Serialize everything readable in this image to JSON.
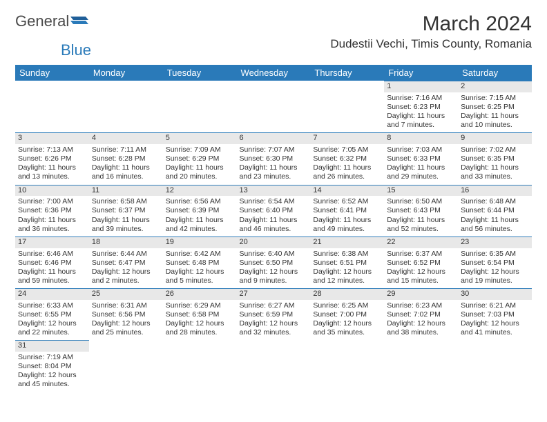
{
  "logo": {
    "text1": "General",
    "text2": "Blue"
  },
  "title": "March 2024",
  "location": "Dudestii Vechi, Timis County, Romania",
  "colors": {
    "header_bg": "#2a7ab9",
    "header_text": "#ffffff",
    "daynum_bg": "#e8e8e8",
    "rule": "#2a7ab9",
    "body_text": "#333333"
  },
  "weekdays": [
    "Sunday",
    "Monday",
    "Tuesday",
    "Wednesday",
    "Thursday",
    "Friday",
    "Saturday"
  ],
  "weeks": [
    [
      {
        "num": "",
        "sunrise": "",
        "sunset": "",
        "day": ""
      },
      {
        "num": "",
        "sunrise": "",
        "sunset": "",
        "day": ""
      },
      {
        "num": "",
        "sunrise": "",
        "sunset": "",
        "day": ""
      },
      {
        "num": "",
        "sunrise": "",
        "sunset": "",
        "day": ""
      },
      {
        "num": "",
        "sunrise": "",
        "sunset": "",
        "day": ""
      },
      {
        "num": "1",
        "sunrise": "Sunrise: 7:16 AM",
        "sunset": "Sunset: 6:23 PM",
        "day": "Daylight: 11 hours and 7 minutes."
      },
      {
        "num": "2",
        "sunrise": "Sunrise: 7:15 AM",
        "sunset": "Sunset: 6:25 PM",
        "day": "Daylight: 11 hours and 10 minutes."
      }
    ],
    [
      {
        "num": "3",
        "sunrise": "Sunrise: 7:13 AM",
        "sunset": "Sunset: 6:26 PM",
        "day": "Daylight: 11 hours and 13 minutes."
      },
      {
        "num": "4",
        "sunrise": "Sunrise: 7:11 AM",
        "sunset": "Sunset: 6:28 PM",
        "day": "Daylight: 11 hours and 16 minutes."
      },
      {
        "num": "5",
        "sunrise": "Sunrise: 7:09 AM",
        "sunset": "Sunset: 6:29 PM",
        "day": "Daylight: 11 hours and 20 minutes."
      },
      {
        "num": "6",
        "sunrise": "Sunrise: 7:07 AM",
        "sunset": "Sunset: 6:30 PM",
        "day": "Daylight: 11 hours and 23 minutes."
      },
      {
        "num": "7",
        "sunrise": "Sunrise: 7:05 AM",
        "sunset": "Sunset: 6:32 PM",
        "day": "Daylight: 11 hours and 26 minutes."
      },
      {
        "num": "8",
        "sunrise": "Sunrise: 7:03 AM",
        "sunset": "Sunset: 6:33 PM",
        "day": "Daylight: 11 hours and 29 minutes."
      },
      {
        "num": "9",
        "sunrise": "Sunrise: 7:02 AM",
        "sunset": "Sunset: 6:35 PM",
        "day": "Daylight: 11 hours and 33 minutes."
      }
    ],
    [
      {
        "num": "10",
        "sunrise": "Sunrise: 7:00 AM",
        "sunset": "Sunset: 6:36 PM",
        "day": "Daylight: 11 hours and 36 minutes."
      },
      {
        "num": "11",
        "sunrise": "Sunrise: 6:58 AM",
        "sunset": "Sunset: 6:37 PM",
        "day": "Daylight: 11 hours and 39 minutes."
      },
      {
        "num": "12",
        "sunrise": "Sunrise: 6:56 AM",
        "sunset": "Sunset: 6:39 PM",
        "day": "Daylight: 11 hours and 42 minutes."
      },
      {
        "num": "13",
        "sunrise": "Sunrise: 6:54 AM",
        "sunset": "Sunset: 6:40 PM",
        "day": "Daylight: 11 hours and 46 minutes."
      },
      {
        "num": "14",
        "sunrise": "Sunrise: 6:52 AM",
        "sunset": "Sunset: 6:41 PM",
        "day": "Daylight: 11 hours and 49 minutes."
      },
      {
        "num": "15",
        "sunrise": "Sunrise: 6:50 AM",
        "sunset": "Sunset: 6:43 PM",
        "day": "Daylight: 11 hours and 52 minutes."
      },
      {
        "num": "16",
        "sunrise": "Sunrise: 6:48 AM",
        "sunset": "Sunset: 6:44 PM",
        "day": "Daylight: 11 hours and 56 minutes."
      }
    ],
    [
      {
        "num": "17",
        "sunrise": "Sunrise: 6:46 AM",
        "sunset": "Sunset: 6:46 PM",
        "day": "Daylight: 11 hours and 59 minutes."
      },
      {
        "num": "18",
        "sunrise": "Sunrise: 6:44 AM",
        "sunset": "Sunset: 6:47 PM",
        "day": "Daylight: 12 hours and 2 minutes."
      },
      {
        "num": "19",
        "sunrise": "Sunrise: 6:42 AM",
        "sunset": "Sunset: 6:48 PM",
        "day": "Daylight: 12 hours and 5 minutes."
      },
      {
        "num": "20",
        "sunrise": "Sunrise: 6:40 AM",
        "sunset": "Sunset: 6:50 PM",
        "day": "Daylight: 12 hours and 9 minutes."
      },
      {
        "num": "21",
        "sunrise": "Sunrise: 6:38 AM",
        "sunset": "Sunset: 6:51 PM",
        "day": "Daylight: 12 hours and 12 minutes."
      },
      {
        "num": "22",
        "sunrise": "Sunrise: 6:37 AM",
        "sunset": "Sunset: 6:52 PM",
        "day": "Daylight: 12 hours and 15 minutes."
      },
      {
        "num": "23",
        "sunrise": "Sunrise: 6:35 AM",
        "sunset": "Sunset: 6:54 PM",
        "day": "Daylight: 12 hours and 19 minutes."
      }
    ],
    [
      {
        "num": "24",
        "sunrise": "Sunrise: 6:33 AM",
        "sunset": "Sunset: 6:55 PM",
        "day": "Daylight: 12 hours and 22 minutes."
      },
      {
        "num": "25",
        "sunrise": "Sunrise: 6:31 AM",
        "sunset": "Sunset: 6:56 PM",
        "day": "Daylight: 12 hours and 25 minutes."
      },
      {
        "num": "26",
        "sunrise": "Sunrise: 6:29 AM",
        "sunset": "Sunset: 6:58 PM",
        "day": "Daylight: 12 hours and 28 minutes."
      },
      {
        "num": "27",
        "sunrise": "Sunrise: 6:27 AM",
        "sunset": "Sunset: 6:59 PM",
        "day": "Daylight: 12 hours and 32 minutes."
      },
      {
        "num": "28",
        "sunrise": "Sunrise: 6:25 AM",
        "sunset": "Sunset: 7:00 PM",
        "day": "Daylight: 12 hours and 35 minutes."
      },
      {
        "num": "29",
        "sunrise": "Sunrise: 6:23 AM",
        "sunset": "Sunset: 7:02 PM",
        "day": "Daylight: 12 hours and 38 minutes."
      },
      {
        "num": "30",
        "sunrise": "Sunrise: 6:21 AM",
        "sunset": "Sunset: 7:03 PM",
        "day": "Daylight: 12 hours and 41 minutes."
      }
    ],
    [
      {
        "num": "31",
        "sunrise": "Sunrise: 7:19 AM",
        "sunset": "Sunset: 8:04 PM",
        "day": "Daylight: 12 hours and 45 minutes."
      },
      {
        "num": "",
        "sunrise": "",
        "sunset": "",
        "day": ""
      },
      {
        "num": "",
        "sunrise": "",
        "sunset": "",
        "day": ""
      },
      {
        "num": "",
        "sunrise": "",
        "sunset": "",
        "day": ""
      },
      {
        "num": "",
        "sunrise": "",
        "sunset": "",
        "day": ""
      },
      {
        "num": "",
        "sunrise": "",
        "sunset": "",
        "day": ""
      },
      {
        "num": "",
        "sunrise": "",
        "sunset": "",
        "day": ""
      }
    ]
  ]
}
